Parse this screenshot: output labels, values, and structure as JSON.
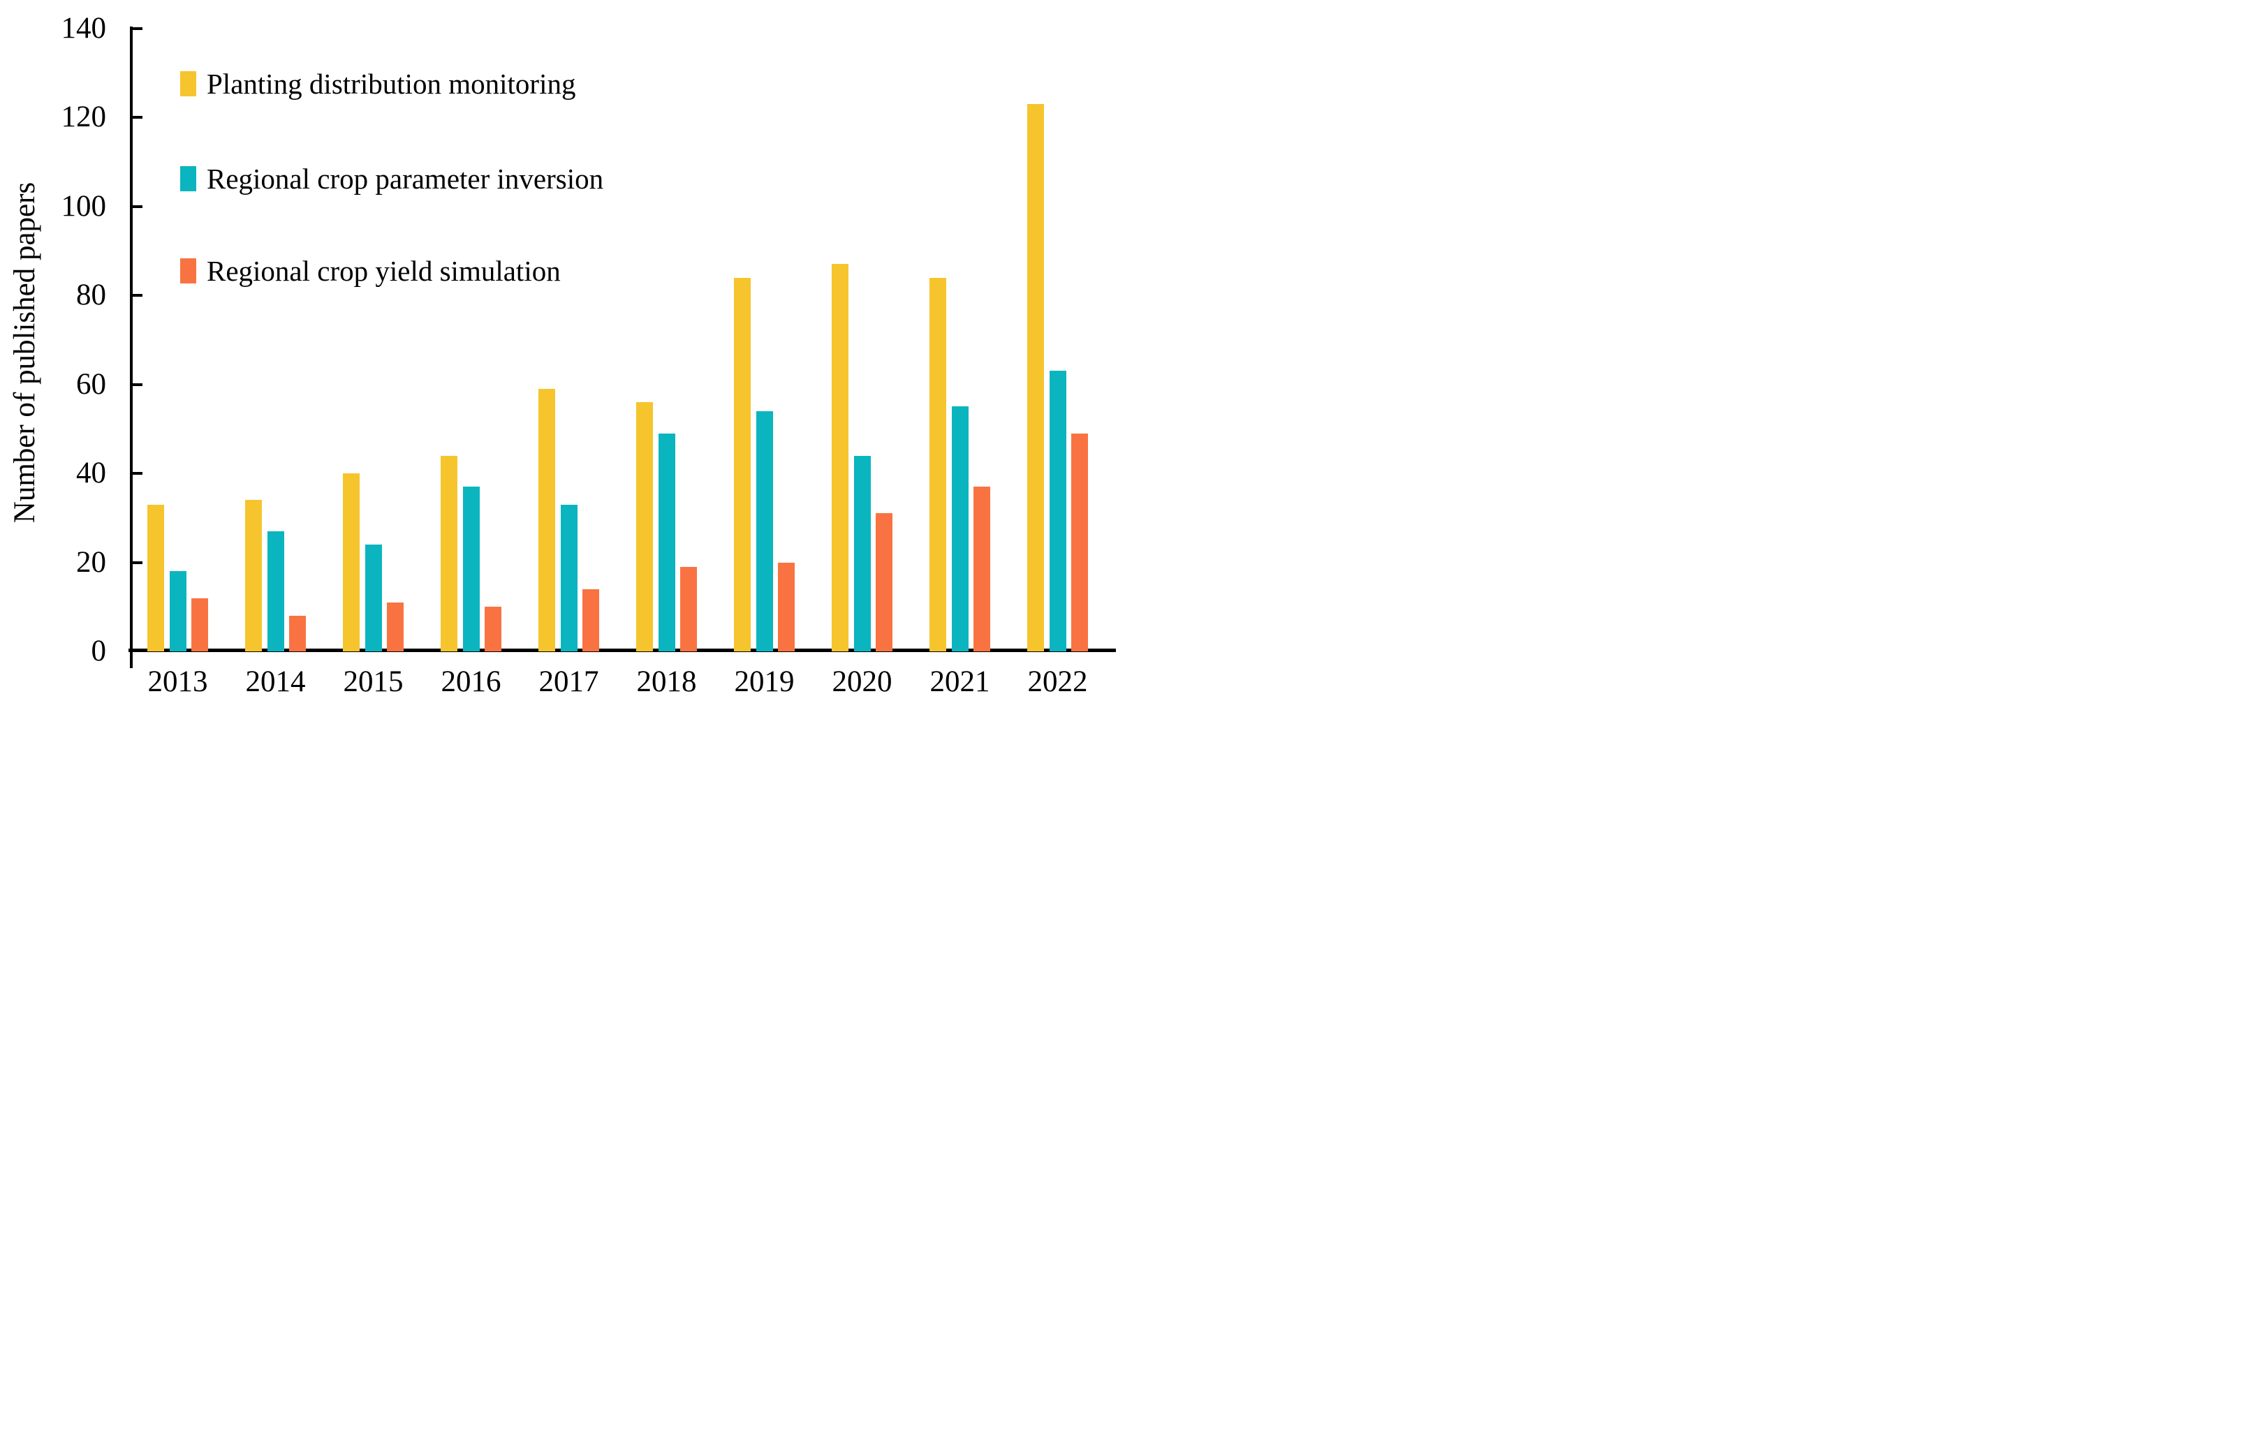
{
  "chart_data": {
    "type": "bar",
    "title": "",
    "xlabel": "",
    "ylabel": "Number of published papers",
    "categories": [
      "2013",
      "2014",
      "2015",
      "2016",
      "2017",
      "2018",
      "2019",
      "2020",
      "2021",
      "2022"
    ],
    "series": [
      {
        "name": "Planting distribution monitoring",
        "color": "#F6C42D",
        "values": [
          33,
          34,
          40,
          44,
          59,
          56,
          84,
          87,
          84,
          123
        ]
      },
      {
        "name": "Regional crop parameter inversion",
        "color": "#0AB5BF",
        "values": [
          18,
          27,
          24,
          37,
          33,
          49,
          54,
          44,
          55,
          63
        ]
      },
      {
        "name": "Regional crop yield simulation",
        "color": "#F97342",
        "values": [
          12,
          8,
          11,
          10,
          14,
          19,
          20,
          31,
          37,
          49
        ]
      }
    ],
    "ylim": [
      0,
      140
    ],
    "ytick_step": 20,
    "yticks": [
      0,
      20,
      40,
      60,
      80,
      100,
      120,
      140
    ],
    "grid": false,
    "legend_position": "inside-top-left",
    "axis_color": "#000000",
    "background_color": "#FFFFFF"
  }
}
